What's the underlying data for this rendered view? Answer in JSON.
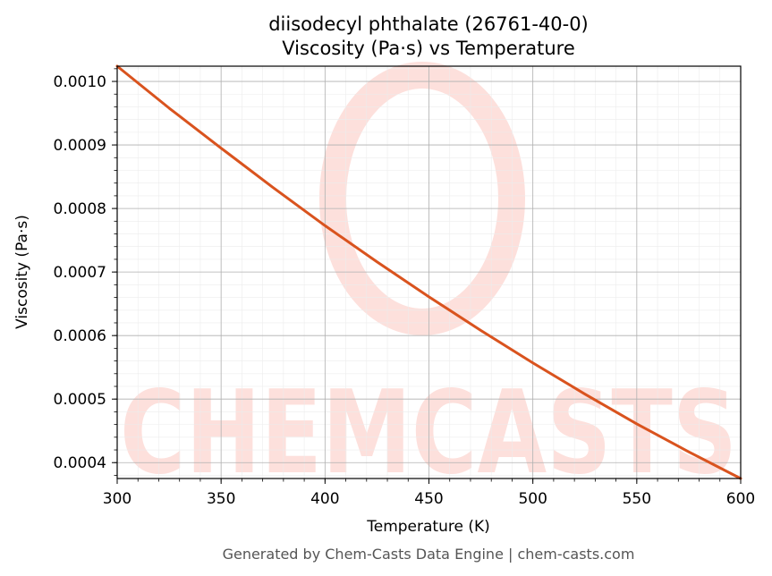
{
  "chart_data": {
    "type": "line",
    "title_line1": "diisodecyl phthalate (26761-40-0)",
    "title_line2": "Viscosity (Pa·s) vs Temperature",
    "xlabel": "Temperature (K)",
    "ylabel": "Viscosity (Pa·s)",
    "xlim": [
      300,
      600
    ],
    "ylim": [
      0.000375,
      0.001024
    ],
    "x_ticks": [
      300,
      350,
      400,
      450,
      500,
      550,
      600
    ],
    "y_ticks": [
      0.0004,
      0.0005,
      0.0006,
      0.0007,
      0.0008,
      0.0009,
      0.001
    ],
    "x_tick_labels": [
      "300",
      "350",
      "400",
      "450",
      "500",
      "550",
      "600"
    ],
    "y_tick_labels": [
      "0.0004",
      "0.0005",
      "0.0006",
      "0.0007",
      "0.0008",
      "0.0009",
      "0.0010"
    ],
    "grid": true,
    "series": [
      {
        "color": "#d9531e",
        "x": [
          300,
          325,
          350,
          375,
          400,
          425,
          450,
          475,
          500,
          525,
          550,
          575,
          600
        ],
        "y": [
          0.001024,
          0.000958,
          0.000895,
          0.000833,
          0.000773,
          0.000716,
          0.000661,
          0.000608,
          0.000557,
          0.000508,
          0.000461,
          0.000417,
          0.000375
        ]
      }
    ]
  },
  "watermark": {
    "text": "CHEMCASTS",
    "color": "#fde0dc"
  },
  "footer": "Generated by Chem-Casts Data Engine | chem-casts.com"
}
